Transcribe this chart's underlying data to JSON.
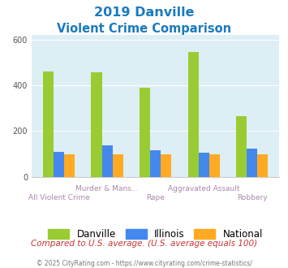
{
  "title_line1": "2019 Danville",
  "title_line2": "Violent Crime Comparison",
  "title_color": "#1a7abf",
  "categories": [
    "All Violent Crime",
    "Murder & Mans...",
    "Rape",
    "Aggravated Assault",
    "Robbery"
  ],
  "danville": [
    460,
    455,
    390,
    545,
    265
  ],
  "illinois": [
    110,
    138,
    115,
    105,
    125
  ],
  "national": [
    100,
    100,
    100,
    100,
    100
  ],
  "colors": {
    "danville": "#99cc33",
    "illinois": "#4488ee",
    "national": "#ffaa22"
  },
  "ylim": [
    0,
    620
  ],
  "yticks": [
    0,
    200,
    400,
    600
  ],
  "background_color": "#ddeef5",
  "note": "Compared to U.S. average. (U.S. average equals 100)",
  "note_color": "#cc3333",
  "footer": "© 2025 CityRating.com - https://www.cityrating.com/crime-statistics/",
  "footer_color": "#777777",
  "footer_link_color": "#3399cc"
}
